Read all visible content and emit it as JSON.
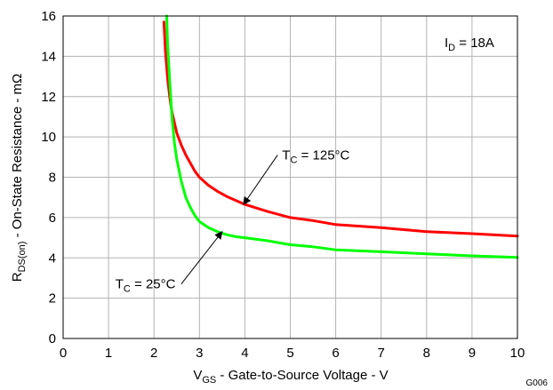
{
  "chart_data": {
    "type": "line",
    "xlim": [
      0,
      10
    ],
    "ylim": [
      0,
      16
    ],
    "x_ticks": [
      0,
      1,
      2,
      3,
      4,
      5,
      6,
      7,
      8,
      9,
      10
    ],
    "y_ticks": [
      0,
      2,
      4,
      6,
      8,
      10,
      12,
      14,
      16
    ],
    "grid": true,
    "xlabel": {
      "main": "V",
      "sub": "GS",
      "rest": " - Gate-to-Source Voltage - V"
    },
    "ylabel": {
      "main": "R",
      "sub": "DS(on)",
      "rest": " - On-State Resistance - mΩ"
    },
    "condition": {
      "main": "I",
      "sub": "D",
      "rest": " = 18A"
    },
    "figure_id": "G006",
    "series": [
      {
        "label": {
          "main": "T",
          "sub": "C",
          "rest": " = 125°C"
        },
        "color": "#ff0000",
        "x": [
          2.22,
          2.25,
          2.3,
          2.35,
          2.4,
          2.5,
          2.6,
          2.7,
          2.8,
          2.9,
          3.0,
          3.2,
          3.4,
          3.6,
          3.8,
          4.0,
          4.5,
          5.0,
          5.5,
          6.0,
          7.0,
          8.0,
          9.0,
          10.0
        ],
        "y": [
          15.7,
          14.3,
          12.9,
          11.9,
          11.2,
          10.2,
          9.6,
          9.1,
          8.7,
          8.3,
          8.0,
          7.6,
          7.3,
          7.05,
          6.85,
          6.65,
          6.3,
          6.0,
          5.85,
          5.65,
          5.5,
          5.3,
          5.2,
          5.08
        ]
      },
      {
        "label": {
          "main": "T",
          "sub": "C",
          "rest": " = 25°C"
        },
        "color": "#00ff00",
        "x": [
          2.28,
          2.3,
          2.35,
          2.4,
          2.45,
          2.5,
          2.6,
          2.7,
          2.8,
          2.9,
          3.0,
          3.2,
          3.4,
          3.6,
          3.8,
          4.0,
          4.5,
          5.0,
          5.5,
          6.0,
          7.0,
          8.0,
          9.0,
          10.0
        ],
        "y": [
          16.0,
          14.6,
          12.6,
          10.9,
          9.7,
          8.9,
          7.8,
          7.0,
          6.5,
          6.1,
          5.8,
          5.5,
          5.3,
          5.15,
          5.05,
          5.0,
          4.85,
          4.65,
          4.55,
          4.4,
          4.3,
          4.2,
          4.1,
          4.02
        ]
      }
    ],
    "annotations": [
      {
        "series": 0,
        "text_x": 4.82,
        "text_y": 9.1,
        "arrow_from": [
          4.72,
          9.1
        ],
        "arrow_to": [
          3.97,
          6.65
        ]
      },
      {
        "series": 1,
        "text_x": 1.15,
        "text_y": 2.7,
        "arrow_from": [
          2.6,
          2.7
        ],
        "arrow_to": [
          3.5,
          5.3
        ]
      }
    ]
  }
}
